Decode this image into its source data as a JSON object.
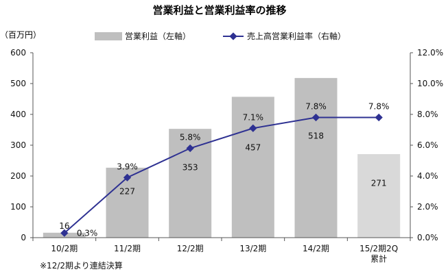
{
  "chart_data": {
    "type": "bar+line",
    "title": "営業利益と営業利益率の推移",
    "left_axis_unit": "（百万円）",
    "categories": [
      [
        "10/2期"
      ],
      [
        "11/2期"
      ],
      [
        "12/2期"
      ],
      [
        "13/2期"
      ],
      [
        "14/2期"
      ],
      [
        "15/2期2Q",
        "累計"
      ]
    ],
    "series": [
      {
        "name": "営業利益（左軸）",
        "type": "bar",
        "axis": "left",
        "values": [
          16,
          227,
          353,
          457,
          518,
          271
        ],
        "labels": [
          "16",
          "227",
          "353",
          "457",
          "518",
          "271"
        ],
        "colors": [
          "#bfbfbf",
          "#bfbfbf",
          "#bfbfbf",
          "#bfbfbf",
          "#bfbfbf",
          "#d9d9d9"
        ]
      },
      {
        "name": "売上高営業利益率（右軸）",
        "type": "line",
        "axis": "right",
        "values": [
          0.3,
          3.9,
          5.8,
          7.1,
          7.8,
          7.8
        ],
        "labels": [
          "0.3%",
          "3.9%",
          "5.8%",
          "7.1%",
          "7.8%",
          "7.8%"
        ],
        "color": "#2e3192"
      }
    ],
    "y_left": {
      "min": 0,
      "max": 600,
      "ticks": [
        "0",
        "100",
        "200",
        "300",
        "400",
        "500",
        "600"
      ]
    },
    "y_right": {
      "min": 0,
      "max": 12,
      "ticks": [
        "0.0%",
        "2.0%",
        "4.0%",
        "6.0%",
        "8.0%",
        "10.0%",
        "12.0%"
      ]
    },
    "legend_position": "top",
    "note": "※12/2期より連結決算",
    "grid": false
  }
}
